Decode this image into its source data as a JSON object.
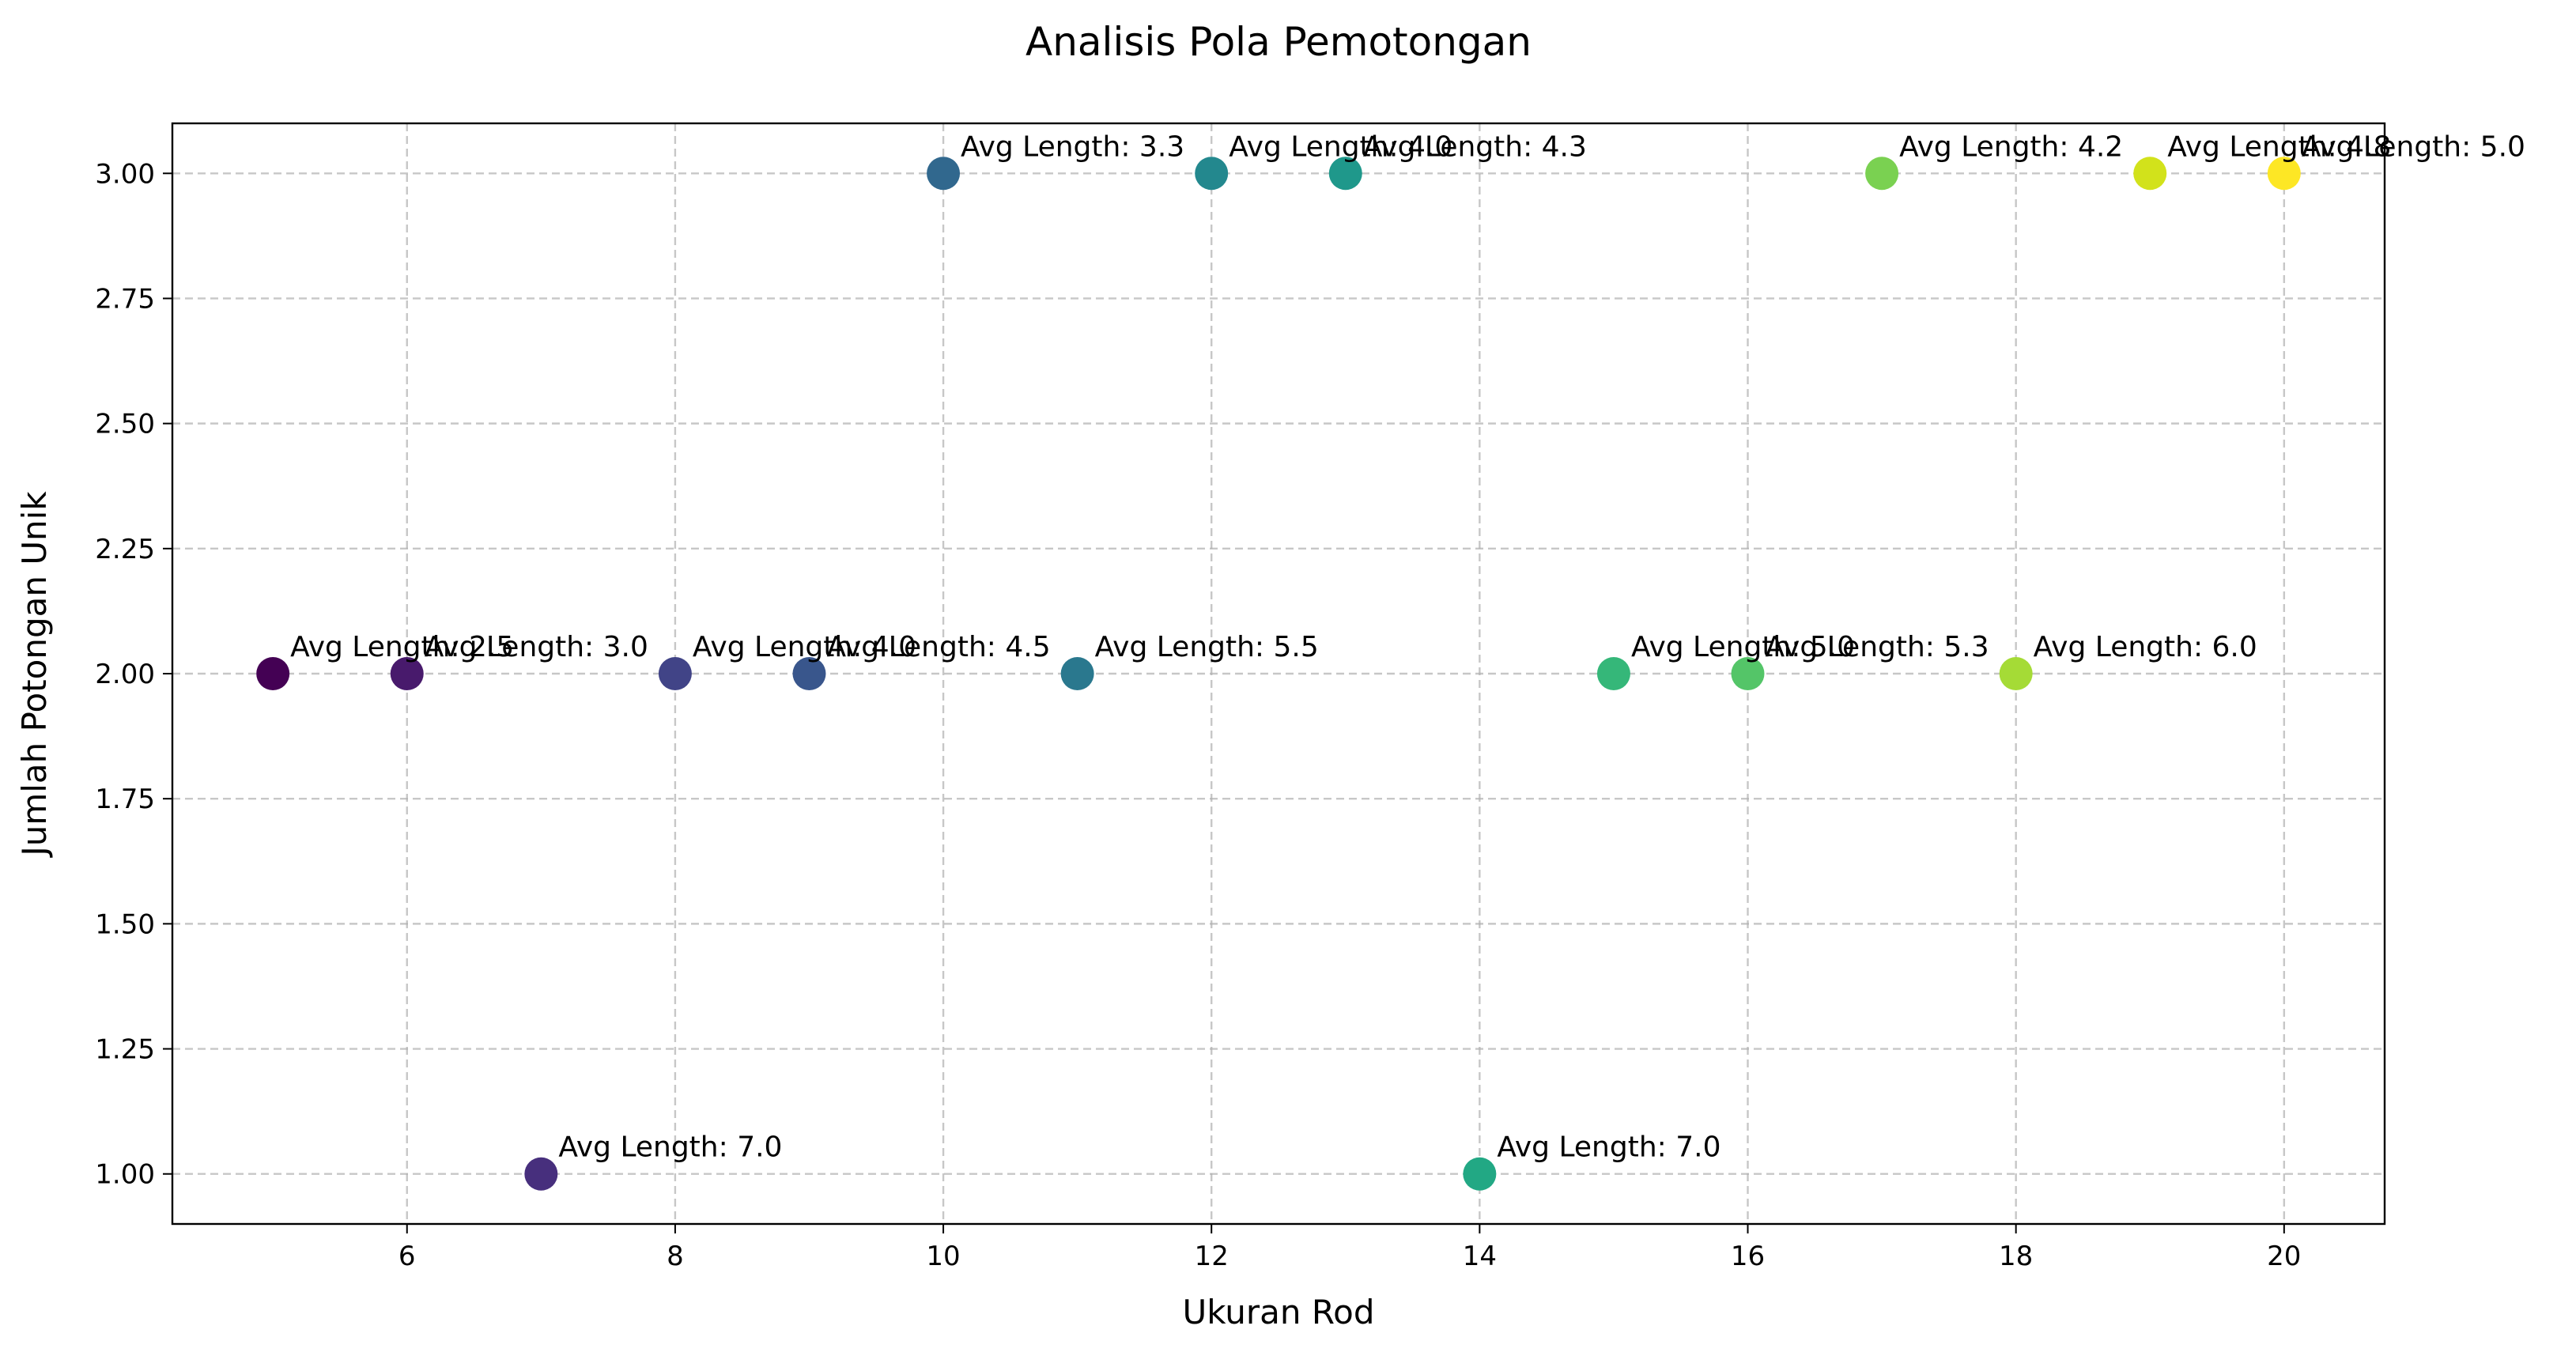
{
  "chart_data": {
    "type": "scatter",
    "title": "Analisis Pola Pemotongan",
    "xlabel": "Ukuran Rod",
    "ylabel": "Jumlah Potongan Unik",
    "xlim": [
      4.25,
      20.75
    ],
    "ylim": [
      0.9,
      3.1
    ],
    "xticks": [
      6,
      8,
      10,
      12,
      14,
      16,
      18,
      20
    ],
    "yticks": [
      1.0,
      1.25,
      1.5,
      1.75,
      2.0,
      2.25,
      2.5,
      2.75,
      3.0
    ],
    "xtick_labels": [
      "6",
      "8",
      "10",
      "12",
      "14",
      "16",
      "18",
      "20"
    ],
    "ytick_labels": [
      "1.00",
      "1.25",
      "1.50",
      "1.75",
      "2.00",
      "2.25",
      "2.50",
      "2.75",
      "3.00"
    ],
    "grid": true,
    "colormap": "viridis",
    "points": [
      {
        "x": 5,
        "y": 2,
        "label": "Avg Length: 2.5",
        "color": "#440154"
      },
      {
        "x": 6,
        "y": 2,
        "label": "Avg Length: 3.0",
        "color": "#481a6c"
      },
      {
        "x": 7,
        "y": 1,
        "label": "Avg Length: 7.0",
        "color": "#472f7d"
      },
      {
        "x": 8,
        "y": 2,
        "label": "Avg Length: 4.0",
        "color": "#414487"
      },
      {
        "x": 9,
        "y": 2,
        "label": "Avg Length: 4.5",
        "color": "#39568c"
      },
      {
        "x": 10,
        "y": 3,
        "label": "Avg Length: 3.3",
        "color": "#31688e"
      },
      {
        "x": 11,
        "y": 2,
        "label": "Avg Length: 5.5",
        "color": "#2a788e"
      },
      {
        "x": 12,
        "y": 3,
        "label": "Avg Length: 4.0",
        "color": "#23888e"
      },
      {
        "x": 13,
        "y": 3,
        "label": "Avg Length: 4.3",
        "color": "#1f988b"
      },
      {
        "x": 14,
        "y": 1,
        "label": "Avg Length: 7.0",
        "color": "#22a884"
      },
      {
        "x": 15,
        "y": 2,
        "label": "Avg Length: 5.0",
        "color": "#35b779"
      },
      {
        "x": 16,
        "y": 2,
        "label": "Avg Length: 5.3",
        "color": "#54c568"
      },
      {
        "x": 17,
        "y": 3,
        "label": "Avg Length: 4.2",
        "color": "#7ad151"
      },
      {
        "x": 18,
        "y": 2,
        "label": "Avg Length: 6.0",
        "color": "#a5db36"
      },
      {
        "x": 19,
        "y": 3,
        "label": "Avg Length: 4.8",
        "color": "#d2e21b"
      },
      {
        "x": 20,
        "y": 3,
        "label": "Avg Length: 5.0",
        "color": "#fde725"
      }
    ]
  }
}
